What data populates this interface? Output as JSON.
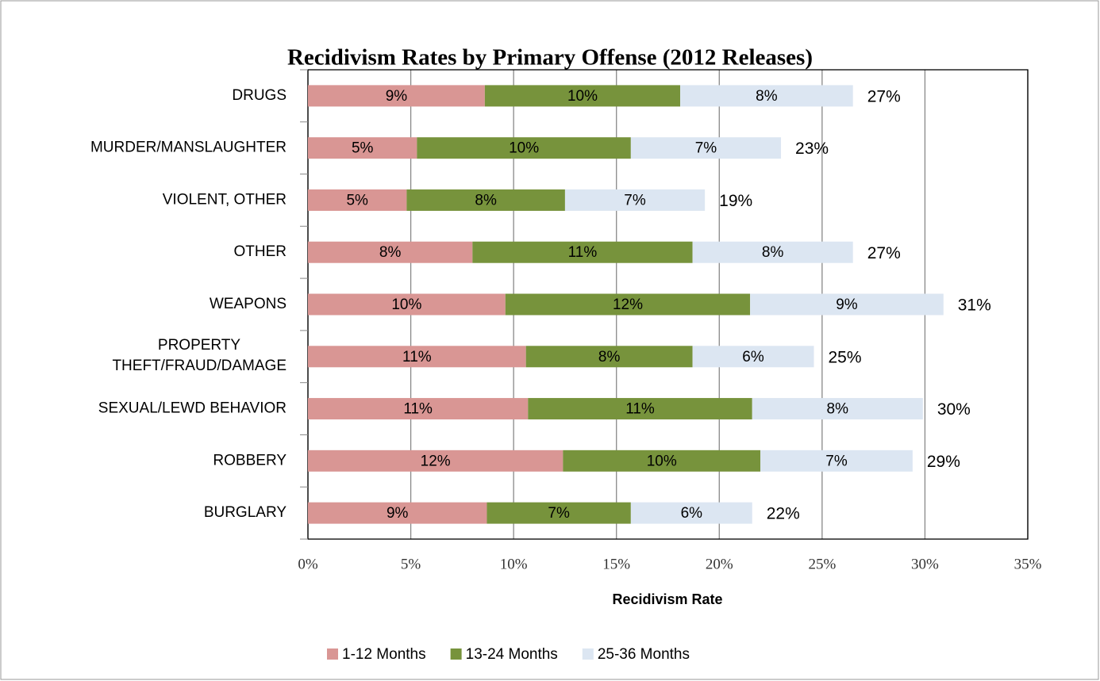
{
  "chart_data": {
    "type": "stacked_bar_horizontal",
    "title": "Recidivism Rates by Primary Offense (2012 Releases)",
    "x_label": "Recidivism Rate",
    "categories": [
      "DRUGS",
      "MURDER/MANSLAUGHTER",
      "VIOLENT, OTHER",
      "OTHER",
      "WEAPONS",
      "PROPERTY THEFT/FRAUD/DAMAGE",
      "SEXUAL/LEWD BEHAVIOR",
      "ROBBERY",
      "BURGLARY"
    ],
    "series": [
      {
        "name": "1-12 Months",
        "color": "#d99694",
        "values": [
          8.6,
          5.3,
          4.8,
          8.0,
          9.6,
          10.6,
          10.7,
          12.4,
          8.7
        ],
        "value_labels": [
          "9%",
          "5%",
          "5%",
          "8%",
          "10%",
          "11%",
          "11%",
          "12%",
          "9%"
        ]
      },
      {
        "name": "13-24 Months",
        "color": "#77933c",
        "values": [
          9.5,
          10.4,
          7.7,
          10.7,
          11.9,
          8.1,
          10.9,
          9.6,
          7.0
        ],
        "value_labels": [
          "10%",
          "10%",
          "8%",
          "11%",
          "12%",
          "8%",
          "11%",
          "10%",
          "7%"
        ]
      },
      {
        "name": "25-36 Months",
        "color": "#dce6f2",
        "values": [
          8.4,
          7.3,
          6.8,
          7.8,
          9.4,
          5.9,
          8.3,
          7.4,
          5.9
        ],
        "value_labels": [
          "8%",
          "7%",
          "7%",
          "8%",
          "9%",
          "6%",
          "8%",
          "7%",
          "6%"
        ]
      }
    ],
    "total_labels": [
      "27%",
      "23%",
      "19%",
      "27%",
      "31%",
      "25%",
      "30%",
      "29%",
      "22%"
    ],
    "xlim": [
      0,
      35
    ],
    "xticks": [
      {
        "value": 0,
        "label": "0%"
      },
      {
        "value": 5,
        "label": "5%"
      },
      {
        "value": 10,
        "label": "10%"
      },
      {
        "value": 15,
        "label": "15%"
      },
      {
        "value": 20,
        "label": "20%"
      },
      {
        "value": 25,
        "label": "25%"
      },
      {
        "value": 30,
        "label": "30%"
      },
      {
        "value": 35,
        "label": "35%"
      }
    ],
    "grid": true,
    "legend": "bottom"
  }
}
